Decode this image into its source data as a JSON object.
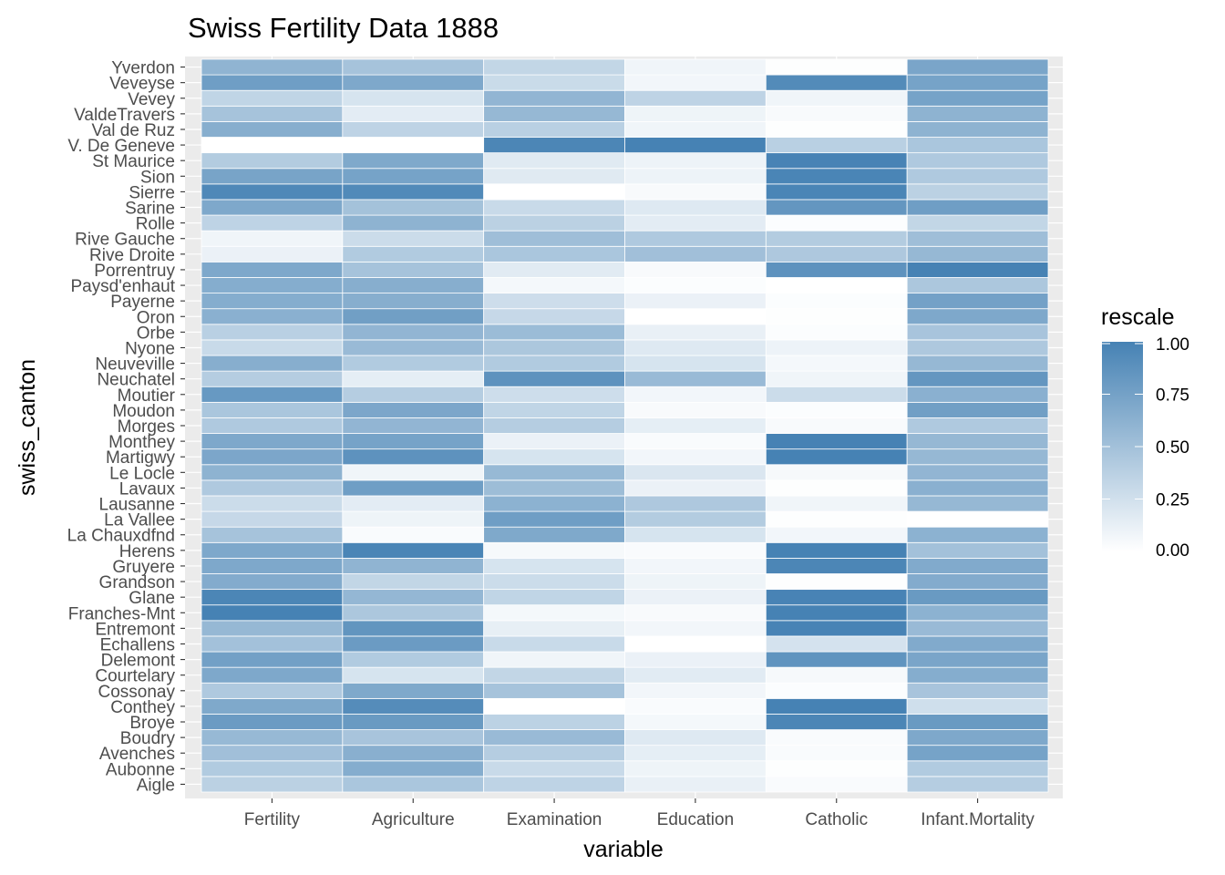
{
  "chart_data": {
    "type": "heatmap",
    "title": "Swiss Fertility Data 1888",
    "xlabel": "variable",
    "ylabel": "swiss_canton",
    "x_categories": [
      "Fertility",
      "Agriculture",
      "Examination",
      "Education",
      "Catholic",
      "Infant.Mortality"
    ],
    "y_categories": [
      "Aigle",
      "Aubonne",
      "Avenches",
      "Boudry",
      "Broye",
      "Conthey",
      "Cossonay",
      "Courtelary",
      "Delemont",
      "Echallens",
      "Entremont",
      "Franches-Mnt",
      "Glane",
      "Grandson",
      "Gruyere",
      "Herens",
      "La Chauxdfnd",
      "La Vallee",
      "Lausanne",
      "Lavaux",
      "Le Locle",
      "Martigwy",
      "Monthey",
      "Morges",
      "Moudon",
      "Moutier",
      "Neuchatel",
      "Neuveville",
      "Nyone",
      "Orbe",
      "Oron",
      "Payerne",
      "Paysd'enhaut",
      "Porrentruy",
      "Rive Droite",
      "Rive Gauche",
      "Rolle",
      "Sarine",
      "Sierre",
      "Sion",
      "St Maurice",
      "V. De Geneve",
      "Val de Ruz",
      "ValdeTravers",
      "Vevey",
      "Veveyse",
      "Yverdon"
    ],
    "values": [
      [
        0.37,
        0.46,
        0.35,
        0.12,
        0.03,
        0.4
      ],
      [
        0.42,
        0.66,
        0.3,
        0.09,
        0.01,
        0.42
      ],
      [
        0.51,
        0.64,
        0.4,
        0.14,
        0.03,
        0.74
      ],
      [
        0.56,
        0.47,
        0.55,
        0.18,
        0.03,
        0.7
      ],
      [
        0.8,
        0.81,
        0.36,
        0.06,
        0.97,
        0.81
      ],
      [
        0.69,
        0.92,
        0.0,
        0.03,
        1.0,
        0.26
      ],
      [
        0.43,
        0.69,
        0.48,
        0.07,
        0.02,
        0.47
      ],
      [
        0.7,
        0.22,
        0.33,
        0.16,
        0.05,
        0.66
      ],
      [
        0.76,
        0.42,
        0.08,
        0.11,
        0.86,
        0.72
      ],
      [
        0.5,
        0.8,
        0.3,
        0.0,
        0.23,
        0.68
      ],
      [
        0.57,
        0.85,
        0.13,
        0.07,
        0.99,
        0.55
      ],
      [
        1.0,
        0.45,
        0.06,
        0.04,
        1.0,
        0.62
      ],
      [
        0.97,
        0.58,
        0.34,
        0.11,
        0.99,
        0.81
      ],
      [
        0.67,
        0.33,
        0.28,
        0.09,
        0.01,
        0.67
      ],
      [
        0.7,
        0.6,
        0.22,
        0.07,
        0.97,
        0.68
      ],
      [
        0.7,
        0.98,
        0.05,
        0.03,
        1.0,
        0.5
      ],
      [
        0.48,
        0.03,
        0.69,
        0.22,
        0.07,
        0.62
      ],
      [
        0.31,
        0.09,
        0.78,
        0.41,
        0.01,
        0.0
      ],
      [
        0.28,
        0.15,
        0.62,
        0.44,
        0.08,
        0.57
      ],
      [
        0.43,
        0.78,
        0.53,
        0.11,
        0.01,
        0.63
      ],
      [
        0.61,
        0.08,
        0.56,
        0.2,
        0.05,
        0.59
      ],
      [
        0.71,
        0.87,
        0.22,
        0.07,
        1.0,
        0.57
      ],
      [
        0.7,
        0.74,
        0.11,
        0.03,
        1.0,
        0.57
      ],
      [
        0.43,
        0.59,
        0.4,
        0.14,
        0.04,
        0.43
      ],
      [
        0.46,
        0.71,
        0.34,
        0.04,
        0.02,
        0.77
      ],
      [
        0.82,
        0.4,
        0.27,
        0.07,
        0.28,
        0.63
      ],
      [
        0.4,
        0.14,
        0.87,
        0.55,
        0.08,
        0.84
      ],
      [
        0.65,
        0.42,
        0.42,
        0.22,
        0.06,
        0.57
      ],
      [
        0.3,
        0.55,
        0.45,
        0.18,
        0.1,
        0.44
      ],
      [
        0.38,
        0.59,
        0.54,
        0.12,
        0.02,
        0.47
      ],
      [
        0.63,
        0.77,
        0.31,
        0.0,
        0.01,
        0.7
      ],
      [
        0.66,
        0.65,
        0.27,
        0.11,
        0.02,
        0.75
      ],
      [
        0.66,
        0.65,
        0.06,
        0.02,
        0.0,
        0.45
      ],
      [
        0.7,
        0.48,
        0.16,
        0.04,
        0.87,
        1.0
      ],
      [
        0.11,
        0.42,
        0.46,
        0.51,
        0.44,
        0.57
      ],
      [
        0.08,
        0.28,
        0.52,
        0.43,
        0.41,
        0.52
      ],
      [
        0.35,
        0.61,
        0.37,
        0.15,
        0.02,
        0.33
      ],
      [
        0.7,
        0.49,
        0.3,
        0.18,
        0.84,
        0.78
      ],
      [
        0.95,
        0.94,
        0.0,
        0.04,
        0.98,
        0.37
      ],
      [
        0.73,
        0.74,
        0.17,
        0.1,
        0.98,
        0.43
      ],
      [
        0.41,
        0.69,
        0.17,
        0.1,
        0.99,
        0.43
      ],
      [
        0.0,
        0.0,
        0.97,
        1.0,
        0.38,
        0.46
      ],
      [
        0.65,
        0.35,
        0.38,
        0.08,
        0.01,
        0.61
      ],
      [
        0.48,
        0.15,
        0.57,
        0.09,
        0.04,
        0.61
      ],
      [
        0.34,
        0.22,
        0.59,
        0.35,
        0.08,
        0.74
      ],
      [
        0.78,
        0.7,
        0.29,
        0.07,
        0.93,
        0.74
      ],
      [
        0.6,
        0.48,
        0.33,
        0.08,
        0.01,
        0.72
      ]
    ],
    "legend": {
      "title": "rescale",
      "labels": [
        "1.00",
        "0.75",
        "0.50",
        "0.25",
        "0.00"
      ],
      "position": "right"
    },
    "color_low": "#ffffff",
    "color_high": "#4682b4",
    "panel_background": "#ebebeb",
    "grid": true
  }
}
